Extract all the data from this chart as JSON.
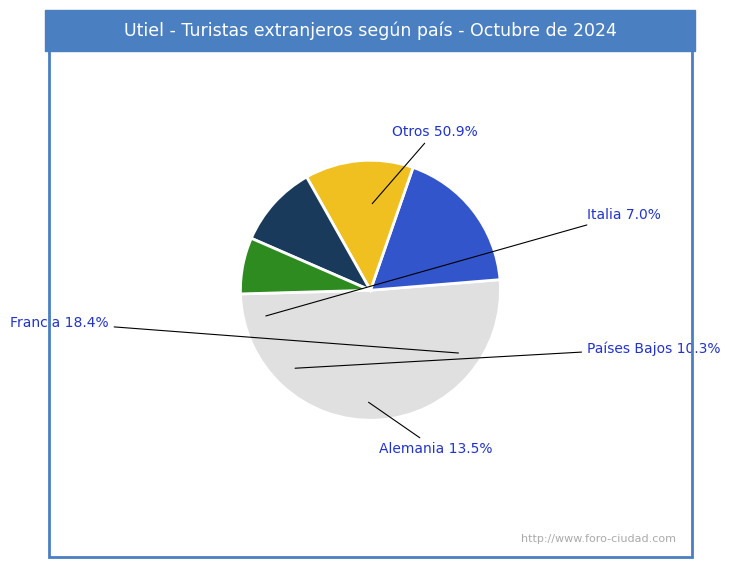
{
  "title": "Utiel - Turistas extranjeros según país - Octubre de 2024",
  "title_bg_color": "#4a7fc1",
  "title_text_color": "#ffffff",
  "title_fontsize": 12.5,
  "slices": [
    {
      "label": "Otros",
      "value": 50.9,
      "color": "#e0e0e0"
    },
    {
      "label": "Francia",
      "value": 18.4,
      "color": "#3355cc"
    },
    {
      "label": "Alemania",
      "value": 13.5,
      "color": "#f0c020"
    },
    {
      "label": "Países Bajos",
      "value": 10.3,
      "color": "#1a3a5c"
    },
    {
      "label": "Italia",
      "value": 7.0,
      "color": "#2e8b20"
    }
  ],
  "annotation_color": "#2233cc",
  "annotation_fontsize": 10,
  "watermark": "http://www.foro-ciudad.com",
  "watermark_color": "#aaaaaa",
  "watermark_fontsize": 8,
  "border_color": "#4a7fc1",
  "background_color": "#ffffff",
  "startangle": 270.18
}
